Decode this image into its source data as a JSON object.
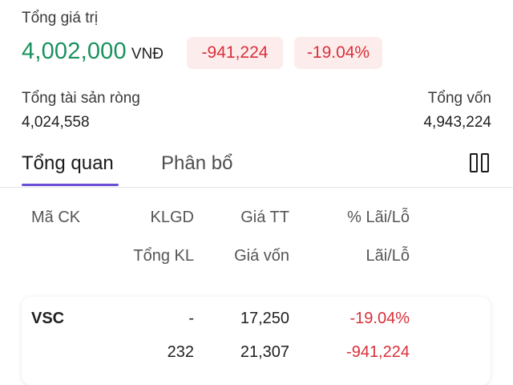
{
  "summary": {
    "total_label": "Tổng giá trị",
    "total_value": "4,002,000",
    "currency": "VNĐ",
    "change_amount": "-941,224",
    "change_percent": "-19.04%",
    "net_assets_label": "Tổng tài sản ròng",
    "net_assets_value": "4,024,558",
    "capital_label": "Tổng vốn",
    "capital_value": "4,943,224"
  },
  "tabs": {
    "overview": "Tổng quan",
    "allocation": "Phân bổ",
    "layout_icon": "columns-icon"
  },
  "table": {
    "headers_row1": {
      "code": "Mã CK",
      "volume": "KLGD",
      "market_price": "Giá TT",
      "pl_percent": "% Lãi/Lỗ"
    },
    "headers_row2": {
      "total_volume": "Tổng KL",
      "cost_price": "Giá vốn",
      "pl": "Lãi/Lỗ"
    },
    "rows": [
      {
        "code": "VSC",
        "volume": "-",
        "market_price": "17,250",
        "pl_percent": "-19.04%",
        "total_volume": "232",
        "cost_price": "21,307",
        "pl": "-941,224"
      }
    ]
  },
  "colors": {
    "positive_green": "#17925e",
    "negative_red": "#d9303a",
    "tab_accent": "#6a4fd6"
  }
}
